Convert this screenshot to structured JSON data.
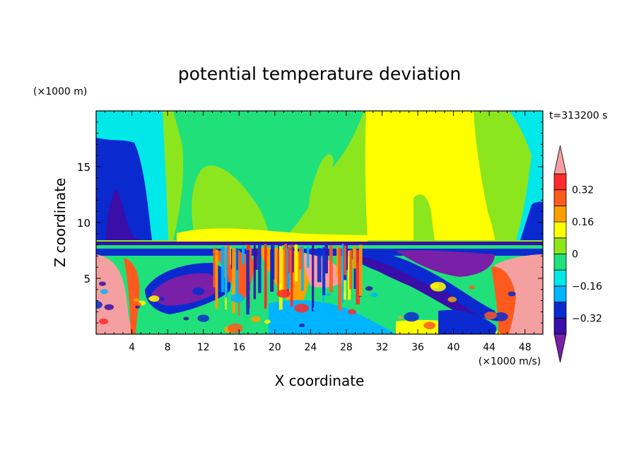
{
  "chart_data": {
    "type": "heatmap",
    "title": "potential temperature deviation",
    "xlabel": "X coordinate",
    "ylabel": "Z coordinate",
    "x_unit": "(×1000 m/s)",
    "y_unit": "(×1000 m)",
    "time_label": "t=313200 s",
    "xlim": [
      0,
      50
    ],
    "ylim": [
      0,
      20
    ],
    "x_ticks": [
      4,
      8,
      12,
      16,
      20,
      24,
      28,
      32,
      36,
      40,
      44,
      48
    ],
    "y_ticks": [
      5,
      10,
      15
    ],
    "grid": false,
    "colorbar": {
      "position": "right",
      "levels": [
        -0.4,
        -0.32,
        -0.24,
        -0.16,
        -0.08,
        0,
        0.08,
        0.16,
        0.24,
        0.32,
        0.4
      ],
      "tick_values": [
        0.32,
        0.16,
        0,
        -0.16,
        -0.32
      ],
      "tick_labels": [
        "0.32",
        "0.16",
        "0",
        "−0.16",
        "−0.32"
      ],
      "colors": [
        "#7a1fa8",
        "#3a0ea8",
        "#0a2ad0",
        "#00b4ff",
        "#00e8e8",
        "#20e07a",
        "#8ce61e",
        "#ffff00",
        "#ffa000",
        "#ff5a1e",
        "#ff2a2a",
        "#f5a0a0"
      ]
    },
    "description_values": {
      "inversion_height_km": 8.2,
      "upper_left_min_region": {
        "x_range": [
          0,
          7
        ],
        "z_range": [
          8.3,
          17.5
        ]
      },
      "upper_right_min_region": {
        "x_range": [
          47,
          50
        ],
        "z_range": [
          8.3,
          14
        ]
      }
    }
  }
}
